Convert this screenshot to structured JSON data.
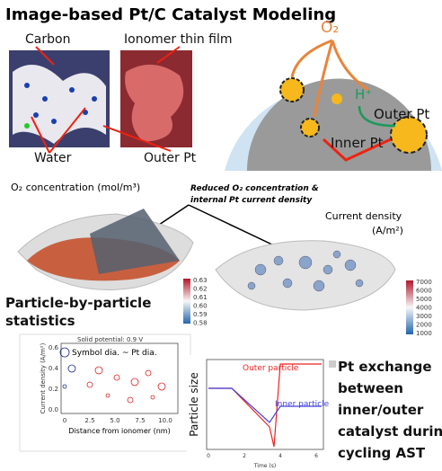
{
  "header": {
    "title": "Image-based Pt/C Catalyst Modeling"
  },
  "images": {
    "carbon": "Carbon",
    "ionomer": "Ionomer thin film",
    "water": "Water",
    "outer_pt": "Outer Pt"
  },
  "schematic": {
    "o2": "O₂",
    "h_plus": "H⁺",
    "outer_pt": "Outer Pt",
    "inner_pt": "Inner Pt"
  },
  "simulation": {
    "o2_label": "O₂ concentration (mol/m³)",
    "callout": [
      "Reduced O₂ concentration &",
      "internal Pt current density"
    ],
    "current_label": [
      "Current density",
      "(A/m²)"
    ],
    "o2_colorbar": [
      "0.63",
      "0.62",
      "0.61",
      "0.60",
      "0.59",
      "0.58"
    ],
    "current_colorbar": [
      "7000",
      "6000",
      "5000",
      "4000",
      "3000",
      "2000",
      "1000"
    ]
  },
  "statistics": {
    "title": [
      "Particle-by-particle",
      "statistics"
    ],
    "notes": [
      "Solid potential: 0.9 V",
      "Symbol dia. ~ Pt dia."
    ],
    "y_label": "Current density (A/m²)",
    "y_ticks": [
      "0.0",
      "0.2",
      "0.4",
      "0.6"
    ],
    "x_ticks": [
      "0",
      "2.5",
      "5.0",
      "7.5",
      "10.0"
    ],
    "x_label": "Distance from ionomer (nm)"
  },
  "exchange": {
    "outer": "Outer particle",
    "inner": "Inner particle",
    "y_label": "Particle size",
    "x_label": "Time (s)",
    "x_ticks": [
      "0",
      "2",
      "4",
      "6"
    ],
    "text": [
      "Pt exchange",
      "between",
      "inner/outer",
      "catalyst during",
      "cycling AST"
    ]
  }
}
